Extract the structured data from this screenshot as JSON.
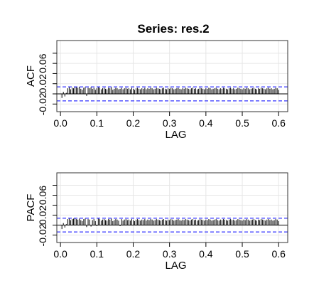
{
  "title": "Series:  res.2",
  "colors": {
    "ci": "#0000ff",
    "zero": "#000000",
    "grid": "#e6e6e6",
    "frame": "#333333",
    "bars": "#000000"
  },
  "chart_data": [
    {
      "type": "bar",
      "title": "Series:  res.2",
      "xlabel": "LAG",
      "ylabel": "ACF",
      "xlim": [
        -0.01,
        0.625
      ],
      "ylim": [
        -0.035,
        0.105
      ],
      "xticks": [
        0.0,
        0.1,
        0.2,
        0.3,
        0.4,
        0.5,
        0.6
      ],
      "xtick_labels": [
        "0.0",
        "0.1",
        "0.2",
        "0.3",
        "0.4",
        "0.5",
        "0.6"
      ],
      "yticks": [
        -0.02,
        0.02,
        0.06
      ],
      "ytick_labels": [
        "-0.02",
        "0.02",
        "0.06"
      ],
      "grid": true,
      "ci": 0.0138,
      "lag_step": 0.004,
      "lag_start": 0.004,
      "values": [
        -0.008,
        0.004,
        -0.005,
        0.002,
        0.011,
        0.013,
        0.009,
        0.012,
        0.011,
        0.014,
        0.013,
        0.012,
        0.014,
        0.01,
        0.008,
        0.012,
        0.013,
        -0.004,
        0.012,
        0.011,
        0.013,
        0.01,
        0.012,
        0.008,
        0.011,
        0.013,
        0.012,
        0.009,
        0.011,
        0.012,
        0.01,
        0.009,
        0.012,
        0.011,
        0.013,
        0.008,
        0.01,
        0.012,
        0.011,
        0.009,
        0.01,
        0.012,
        0.009,
        0.011,
        0.012,
        0.01,
        0.011,
        0.009,
        0.012,
        0.01,
        0.008,
        0.011,
        0.012,
        0.01,
        0.009,
        0.011,
        0.01,
        0.012,
        0.009,
        0.011,
        0.01,
        0.012,
        0.011,
        0.009,
        0.01,
        0.012,
        0.011,
        0.01,
        0.009,
        0.011,
        0.012,
        0.01,
        0.009,
        0.011,
        0.01,
        0.012,
        0.011,
        0.009,
        0.01,
        0.011,
        0.012,
        0.01,
        0.009,
        0.011,
        0.01,
        0.012,
        0.011,
        0.01,
        0.009,
        0.011,
        0.012,
        0.01,
        0.011,
        0.009,
        0.01,
        0.012,
        0.011,
        0.01,
        0.009,
        0.011,
        0.01,
        0.012,
        0.011,
        0.009,
        0.01,
        0.011,
        0.012,
        0.01,
        0.009,
        0.011,
        0.01,
        0.012,
        0.011,
        0.01,
        0.009,
        0.011,
        0.012,
        0.01,
        0.011,
        0.009,
        0.01,
        0.012,
        0.011,
        0.01,
        0.009,
        0.011,
        0.01,
        0.012,
        0.011,
        0.009,
        0.01,
        0.011,
        0.012,
        0.01,
        0.009,
        0.011,
        0.01,
        0.012,
        0.011,
        0.01,
        0.009,
        0.011,
        0.012,
        0.01,
        0.011,
        0.009,
        0.01,
        0.012,
        0.011,
        0.008
      ]
    },
    {
      "type": "bar",
      "title": "",
      "xlabel": "LAG",
      "ylabel": "PACF",
      "xlim": [
        -0.01,
        0.625
      ],
      "ylim": [
        -0.035,
        0.105
      ],
      "xticks": [
        0.0,
        0.1,
        0.2,
        0.3,
        0.4,
        0.5,
        0.6
      ],
      "xtick_labels": [
        "0.0",
        "0.1",
        "0.2",
        "0.3",
        "0.4",
        "0.5",
        "0.6"
      ],
      "yticks": [
        -0.02,
        0.02,
        0.06
      ],
      "ytick_labels": [
        "-0.02",
        "0.02",
        "0.06"
      ],
      "grid": true,
      "ci": 0.0138,
      "lag_step": 0.004,
      "lag_start": 0.004,
      "values": [
        -0.008,
        0.004,
        -0.005,
        0.002,
        0.012,
        0.013,
        0.01,
        0.012,
        0.013,
        0.014,
        0.012,
        0.011,
        0.013,
        0.01,
        0.008,
        0.012,
        0.013,
        -0.004,
        0.012,
        0.011,
        -0.003,
        0.01,
        0.012,
        0.008,
        -0.002,
        0.013,
        0.012,
        0.009,
        0.011,
        0.012,
        0.01,
        0.009,
        0.012,
        0.011,
        0.013,
        0.008,
        0.01,
        0.012,
        0.011,
        0.009,
        -0.002,
        0.012,
        0.009,
        0.011,
        0.012,
        0.01,
        0.011,
        0.009,
        0.012,
        0.01,
        0.008,
        0.011,
        0.012,
        0.01,
        0.009,
        0.011,
        0.01,
        0.012,
        0.009,
        0.011,
        0.01,
        0.012,
        0.011,
        0.009,
        0.01,
        0.012,
        0.011,
        0.01,
        0.009,
        0.011,
        0.012,
        0.01,
        0.009,
        0.011,
        0.01,
        0.012,
        0.011,
        0.009,
        0.01,
        0.011,
        0.012,
        0.01,
        0.009,
        0.011,
        0.01,
        0.012,
        0.011,
        0.01,
        0.009,
        0.011,
        0.012,
        0.01,
        0.011,
        0.009,
        0.01,
        0.012,
        0.011,
        0.01,
        0.009,
        0.011,
        0.01,
        0.012,
        0.011,
        0.009,
        0.01,
        0.011,
        0.012,
        0.01,
        0.009,
        0.011,
        0.01,
        0.012,
        0.011,
        0.01,
        0.009,
        0.011,
        0.012,
        0.01,
        0.011,
        0.009,
        0.01,
        0.012,
        0.011,
        0.01,
        0.009,
        0.011,
        0.01,
        0.012,
        0.011,
        0.009,
        0.01,
        0.011,
        0.012,
        0.01,
        0.009,
        0.011,
        0.01,
        0.012,
        0.011,
        0.01,
        0.009,
        0.011,
        0.012,
        0.01,
        0.011,
        0.009,
        0.01,
        0.012,
        0.011,
        0.008
      ]
    }
  ]
}
